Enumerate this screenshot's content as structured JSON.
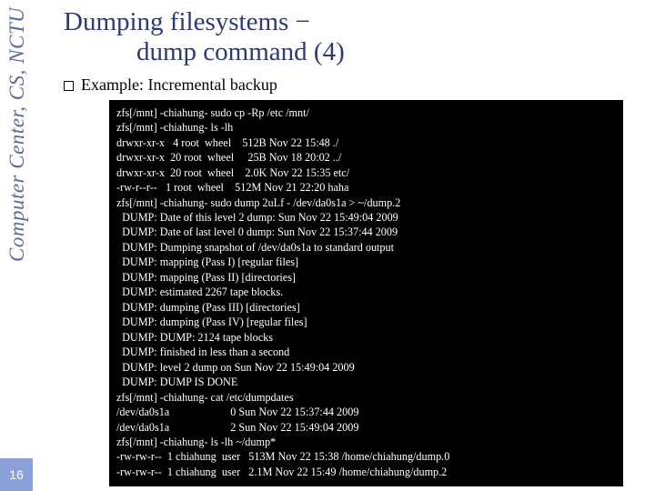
{
  "sidebar": {
    "label": "Computer Center, CS, NCTU"
  },
  "pageNumber": "16",
  "title": {
    "line1": "Dumping filesystems −",
    "line2": "dump command (4)"
  },
  "subtitle": "Example: Incremental backup",
  "terminal": {
    "background": "#000000",
    "text_color": "#ffffff",
    "lines": [
      "zfs[/mnt] -chiahung- sudo cp -Rp /etc /mnt/",
      "zfs[/mnt] -chiahung- ls -lh",
      "drwxr-xr-x   4 root  wheel    512B Nov 22 15:48 ./",
      "drwxr-xr-x  20 root  wheel     25B Nov 18 20:02 ../",
      "drwxr-xr-x  20 root  wheel    2.0K Nov 22 15:35 etc/",
      "-rw-r--r--   1 root  wheel    512M Nov 21 22:20 haha",
      "zfs[/mnt] -chiahung- sudo dump 2uLf - /dev/da0s1a > ~/dump.2",
      "  DUMP: Date of this level 2 dump: Sun Nov 22 15:49:04 2009",
      "  DUMP: Date of last level 0 dump: Sun Nov 22 15:37:44 2009",
      "  DUMP: Dumping snapshot of /dev/da0s1a to standard output",
      "  DUMP: mapping (Pass I) [regular files]",
      "  DUMP: mapping (Pass II) [directories]",
      "  DUMP: estimated 2267 tape blocks.",
      "  DUMP: dumping (Pass III) [directories]",
      "  DUMP: dumping (Pass IV) [regular files]",
      "  DUMP: DUMP: 2124 tape blocks",
      "  DUMP: finished in less than a second",
      "  DUMP: level 2 dump on Sun Nov 22 15:49:04 2009",
      "  DUMP: DUMP IS DONE",
      "zfs[/mnt] -chiahung- cat /etc/dumpdates",
      "/dev/da0s1a                      0 Sun Nov 22 15:37:44 2009",
      "/dev/da0s1a                      2 Sun Nov 22 15:49:04 2009",
      "zfs[/mnt] -chiahung- ls -lh ~/dump*",
      "-rw-rw-r--  1 chiahung  user   513M Nov 22 15:38 /home/chiahung/dump.0",
      "-rw-rw-r--  1 chiahung  user   2.1M Nov 22 15:49 /home/chiahung/dump.2"
    ]
  },
  "colors": {
    "title_color": "#2a3a7a",
    "sidebar_color": "#5b6aa0",
    "page_badge_bg": "#8aa0d8"
  }
}
